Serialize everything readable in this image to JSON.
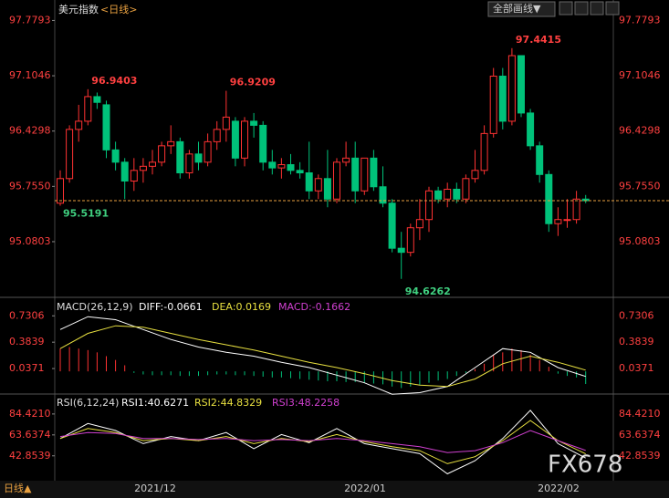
{
  "title": "美元指数",
  "period": "<日线>",
  "toolbar": "全部画线▼",
  "bottom_period": "日线▲",
  "watermark": "FX678",
  "chart_data": [
    {
      "type": "candlestick",
      "up_color": "#ff3232",
      "down_color": "#00c27a",
      "open": [
        95.55,
        95.85,
        96.45,
        96.55,
        96.85,
        96.75,
        96.2,
        96.05,
        95.82,
        95.95,
        96.0,
        96.05,
        96.25,
        96.3,
        95.92,
        96.15,
        96.05,
        96.3,
        96.45,
        96.55,
        96.1,
        96.55,
        96.5,
        96.05,
        95.98,
        96.02,
        95.95,
        95.92,
        95.7,
        95.85,
        95.6,
        96.05,
        96.1,
        95.7,
        96.1,
        95.75,
        95.55,
        95.0,
        94.95,
        95.25,
        95.35,
        95.7,
        95.6,
        95.72,
        95.6,
        95.85,
        95.95,
        96.4,
        97.1,
        96.55,
        97.35,
        96.65,
        96.25,
        95.9,
        95.3,
        95.35,
        95.35,
        95.6
      ],
      "high": [
        95.95,
        96.5,
        96.75,
        96.9403,
        96.9,
        96.8,
        96.3,
        96.1,
        96.1,
        96.1,
        96.2,
        96.3,
        96.5,
        96.35,
        96.2,
        96.3,
        96.4,
        96.55,
        96.9209,
        96.6,
        96.6,
        96.65,
        96.55,
        96.2,
        96.1,
        96.15,
        96.05,
        96.3,
        95.9,
        96.2,
        96.1,
        96.3,
        96.3,
        96.1,
        96.2,
        96.0,
        95.6,
        95.2,
        95.3,
        95.6,
        95.75,
        95.75,
        95.8,
        95.8,
        95.9,
        96.2,
        96.5,
        97.2,
        97.2,
        97.4415,
        97.35,
        96.7,
        96.3,
        95.95,
        95.5,
        95.6,
        95.7,
        95.65
      ],
      "low": [
        95.5191,
        95.8,
        96.3,
        96.5,
        96.7,
        96.1,
        95.95,
        95.6,
        95.7,
        95.8,
        95.9,
        96.0,
        96.15,
        95.85,
        95.85,
        95.95,
        96.0,
        96.2,
        96.3,
        96.0,
        96.0,
        96.35,
        95.95,
        95.9,
        95.85,
        95.9,
        95.85,
        95.6,
        95.6,
        95.5,
        95.55,
        96.0,
        95.55,
        95.65,
        95.7,
        95.5,
        94.95,
        94.6262,
        94.9,
        95.1,
        95.2,
        95.55,
        95.5,
        95.55,
        95.55,
        95.8,
        95.9,
        96.35,
        96.45,
        96.5,
        96.6,
        96.2,
        95.8,
        95.2,
        95.15,
        95.25,
        95.3,
        95.55
      ],
      "close": [
        95.85,
        96.45,
        96.55,
        96.85,
        96.78,
        96.2,
        96.05,
        95.82,
        95.95,
        96.0,
        96.05,
        96.25,
        96.3,
        95.92,
        96.15,
        96.05,
        96.3,
        96.45,
        96.6,
        96.1,
        96.55,
        96.5,
        96.05,
        95.98,
        96.02,
        95.95,
        95.92,
        95.7,
        95.85,
        95.6,
        96.05,
        96.1,
        95.7,
        96.1,
        95.75,
        95.55,
        95.0,
        94.95,
        95.25,
        95.35,
        95.7,
        95.6,
        95.72,
        95.6,
        95.85,
        95.95,
        96.4,
        97.1,
        96.55,
        97.35,
        96.65,
        96.25,
        95.9,
        95.3,
        95.35,
        95.35,
        95.6,
        95.58
      ],
      "ylim": [
        94.49,
        97.94
      ],
      "yticks": [
        97.7793,
        97.1046,
        96.4298,
        {
          "value": 95.755,
          "label": "95.7550"
        },
        95.0803
      ],
      "x_labels": [
        "2021/12",
        "2022/01",
        "2022/02"
      ]
    },
    {
      "type": "macd",
      "title": "MACD(26,12,9)",
      "ylim": [
        -0.25,
        0.89
      ],
      "yticks": [
        0.7306,
        0.3839,
        0.0371
      ],
      "histogram": {
        "name": "MACD:-0.1662",
        "up_color": "#ff3232",
        "down_color": "#00c27a",
        "values": [
          0.3,
          0.32,
          0.3,
          0.28,
          0.25,
          0.2,
          0.15,
          0.08,
          -0.02,
          -0.04,
          -0.05,
          -0.05,
          -0.05,
          -0.06,
          -0.06,
          -0.06,
          -0.05,
          -0.04,
          -0.04,
          -0.05,
          -0.05,
          -0.06,
          -0.07,
          -0.08,
          -0.08,
          -0.09,
          -0.1,
          -0.11,
          -0.12,
          -0.13,
          -0.13,
          -0.14,
          -0.14,
          -0.15,
          -0.16,
          -0.17,
          -0.2,
          -0.22,
          -0.2,
          -0.18,
          -0.15,
          -0.12,
          -0.1,
          -0.06,
          -0.02,
          0.03,
          0.1,
          0.22,
          0.25,
          0.3,
          0.28,
          0.22,
          0.15,
          0.06,
          -0.03,
          -0.06,
          -0.08,
          -0.1662
        ]
      },
      "series": [
        {
          "name": "DIFF:-0.0661",
          "color": "#ffffff",
          "values": [
            0.55,
            0.72,
            0.68,
            0.55,
            0.42,
            0.32,
            0.25,
            0.2,
            0.12,
            0.05,
            -0.05,
            -0.15,
            -0.3,
            -0.28,
            -0.2,
            0.05,
            0.3,
            0.25,
            0.05,
            -0.0661
          ]
        },
        {
          "name": "DEA:0.0169",
          "color": "#e8e040",
          "values": [
            0.3,
            0.5,
            0.6,
            0.58,
            0.5,
            0.42,
            0.35,
            0.28,
            0.2,
            0.12,
            0.05,
            -0.03,
            -0.12,
            -0.18,
            -0.2,
            -0.1,
            0.1,
            0.2,
            0.12,
            0.0169
          ]
        }
      ]
    },
    {
      "type": "rsi",
      "title": "RSI(6,12,24)",
      "ylim": [
        20,
        97
      ],
      "yticks": [
        {
          "value": 84.421,
          "label": "84.4210"
        },
        63.6374,
        42.8539
      ],
      "series": [
        {
          "name": "RSI1:40.6271",
          "color": "#ffffff",
          "values": [
            60,
            75,
            68,
            55,
            62,
            58,
            66,
            50,
            64,
            56,
            70,
            55,
            50,
            45,
            25,
            38,
            60,
            88,
            55,
            40.6271
          ]
        },
        {
          "name": "RSI2:44.8329",
          "color": "#e8e040",
          "values": [
            60,
            70,
            66,
            58,
            60,
            58,
            62,
            55,
            60,
            57,
            64,
            57,
            52,
            48,
            35,
            42,
            58,
            78,
            58,
            44.8329
          ]
        },
        {
          "name": "RSI3:48.2258",
          "color": "#d040d0",
          "values": [
            62,
            66,
            65,
            60,
            60,
            59,
            60,
            58,
            59,
            58,
            60,
            58,
            55,
            52,
            46,
            48,
            56,
            68,
            58,
            48.2258
          ]
        }
      ]
    }
  ]
}
